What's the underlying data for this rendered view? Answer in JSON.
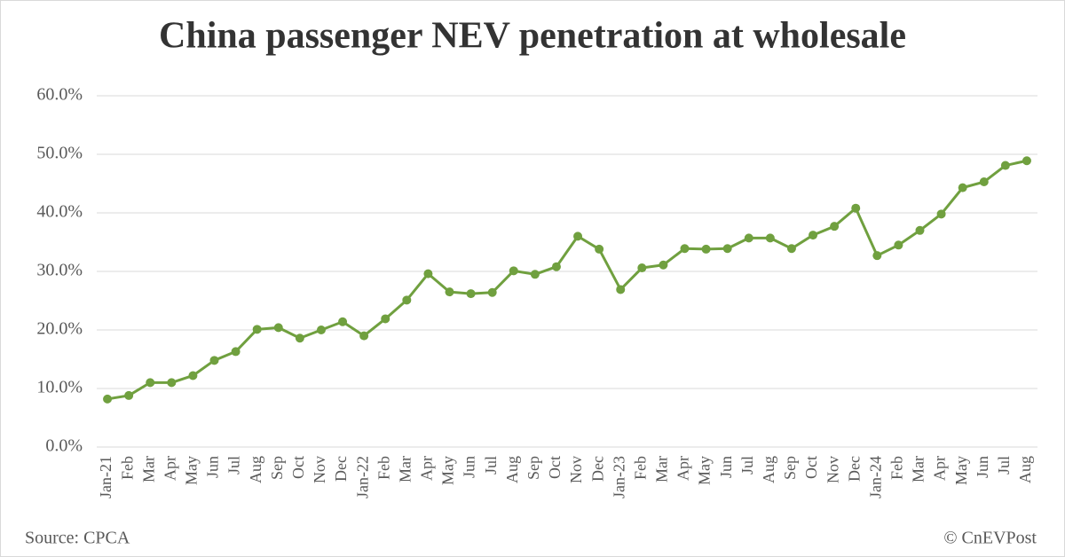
{
  "chart_data": {
    "type": "line",
    "title": "China passenger NEV penetration at wholesale",
    "source": "Source: CPCA",
    "credit": "© CnEVPost",
    "categories": [
      "Jan-21",
      "Feb",
      "Mar",
      "Apr",
      "May",
      "Jun",
      "Jul",
      "Aug",
      "Sep",
      "Oct",
      "Nov",
      "Dec",
      "Jan-22",
      "Feb",
      "Mar",
      "Apr",
      "May",
      "Jun",
      "Jul",
      "Aug",
      "Sep",
      "Oct",
      "Nov",
      "Dec",
      "Jan-23",
      "Feb",
      "Mar",
      "Apr",
      "May",
      "Jun",
      "Jul",
      "Aug",
      "Sep",
      "Oct",
      "Nov",
      "Dec",
      "Jan-24",
      "Feb",
      "Mar",
      "Apr",
      "May",
      "Jun",
      "Jul",
      "Aug"
    ],
    "values": [
      8.2,
      8.8,
      11.0,
      11.0,
      12.2,
      14.8,
      16.3,
      20.1,
      20.4,
      18.6,
      20.0,
      21.4,
      19.0,
      21.9,
      25.1,
      29.6,
      26.5,
      26.2,
      26.4,
      30.1,
      29.5,
      30.8,
      36.0,
      33.8,
      26.9,
      30.6,
      31.1,
      33.9,
      33.8,
      33.9,
      35.7,
      35.7,
      33.9,
      36.2,
      37.7,
      40.8,
      32.7,
      34.5,
      37.0,
      39.8,
      44.3,
      45.3,
      48.1,
      48.9
    ],
    "color": "#70a03f",
    "ylim": [
      0,
      60
    ],
    "yticks": [
      {
        "value": 0,
        "label": "0.0%"
      },
      {
        "value": 10,
        "label": "10.0%"
      },
      {
        "value": 20,
        "label": "20.0%"
      },
      {
        "value": 30,
        "label": "30.0%"
      },
      {
        "value": 40,
        "label": "40.0%"
      },
      {
        "value": 50,
        "label": "50.0%"
      },
      {
        "value": 60,
        "label": "60.0%"
      }
    ],
    "grid": true
  }
}
